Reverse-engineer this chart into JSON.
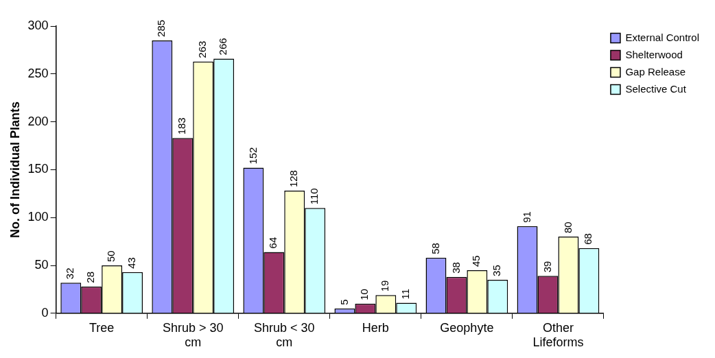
{
  "chart_data": {
    "type": "bar",
    "ylabel": "No. of Individual Plants",
    "categories": [
      "Tree",
      "Shrub > 30 cm",
      "Shrub < 30 cm",
      "Herb",
      "Geophyte",
      "Other Lifeforms"
    ],
    "series": [
      {
        "name": "External Control",
        "color": "#9999ff",
        "values": [
          32,
          285,
          152,
          5,
          58,
          91
        ]
      },
      {
        "name": "Shelterwood",
        "color": "#993366",
        "values": [
          28,
          183,
          64,
          10,
          38,
          39
        ]
      },
      {
        "name": "Gap Release",
        "color": "#ffffcc",
        "values": [
          50,
          263,
          128,
          19,
          45,
          80
        ]
      },
      {
        "name": "Selective Cut",
        "color": "#ccffff",
        "values": [
          43,
          266,
          110,
          11,
          35,
          68
        ]
      }
    ],
    "ylim": [
      0,
      300
    ],
    "yticks": [
      0,
      50,
      100,
      150,
      200,
      250,
      300
    ],
    "grid": false,
    "legend": "top right",
    "data_labels": true
  }
}
